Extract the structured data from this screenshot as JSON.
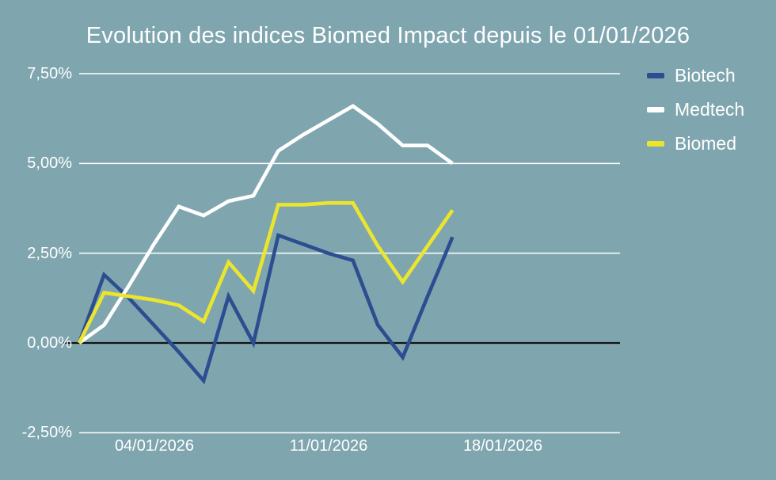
{
  "chart_data": {
    "type": "line",
    "title": "Evolution des indices Biomed Impact depuis le 01/01/2026",
    "unit": "%",
    "background": "#7fa6af",
    "text_color": "#ffffff",
    "gridline_color": "#ffffff",
    "zero_line_color": "#141414",
    "grid": "horizontal-only",
    "legend_position": "right",
    "ylim": [
      -2.5,
      7.5
    ],
    "y_ticks": [
      7.5,
      5.0,
      2.5,
      0.0,
      -2.5
    ],
    "y_tick_labels": [
      "7,50%",
      "5,00%",
      "2,50%",
      "0,00%",
      "-2,50%"
    ],
    "x_tick_labels": [
      "04/01/2026",
      "11/01/2026",
      "18/01/2026"
    ],
    "x_tick_day_index": [
      3,
      10,
      17
    ],
    "x_total_days": 21.7,
    "x_dates": [
      "01/01/2026",
      "02/01/2026",
      "03/01/2026",
      "04/01/2026",
      "05/01/2026",
      "06/01/2026",
      "07/01/2026",
      "08/01/2026",
      "09/01/2026",
      "10/01/2026",
      "11/01/2026",
      "12/01/2026",
      "13/01/2026",
      "14/01/2026",
      "15/01/2026",
      "16/01/2026"
    ],
    "series": [
      {
        "name": "Biotech",
        "color": "#2c4e91",
        "values": [
          0.0,
          1.9,
          1.25,
          0.5,
          -0.25,
          -1.05,
          1.3,
          0.0,
          3.0,
          2.75,
          2.5,
          2.3,
          0.5,
          -0.4,
          1.3,
          2.95
        ]
      },
      {
        "name": "Medtech",
        "color": "#ffffff",
        "values": [
          0.0,
          0.5,
          1.6,
          2.75,
          3.8,
          3.55,
          3.95,
          4.1,
          5.35,
          5.8,
          6.2,
          6.6,
          6.1,
          5.5,
          5.5,
          5.0
        ]
      },
      {
        "name": "Biomed",
        "color": "#ebe52e",
        "values": [
          0.0,
          1.4,
          1.3,
          1.2,
          1.05,
          0.6,
          2.25,
          1.45,
          3.85,
          3.85,
          3.9,
          3.9,
          2.7,
          1.7,
          2.7,
          3.7
        ]
      }
    ]
  }
}
